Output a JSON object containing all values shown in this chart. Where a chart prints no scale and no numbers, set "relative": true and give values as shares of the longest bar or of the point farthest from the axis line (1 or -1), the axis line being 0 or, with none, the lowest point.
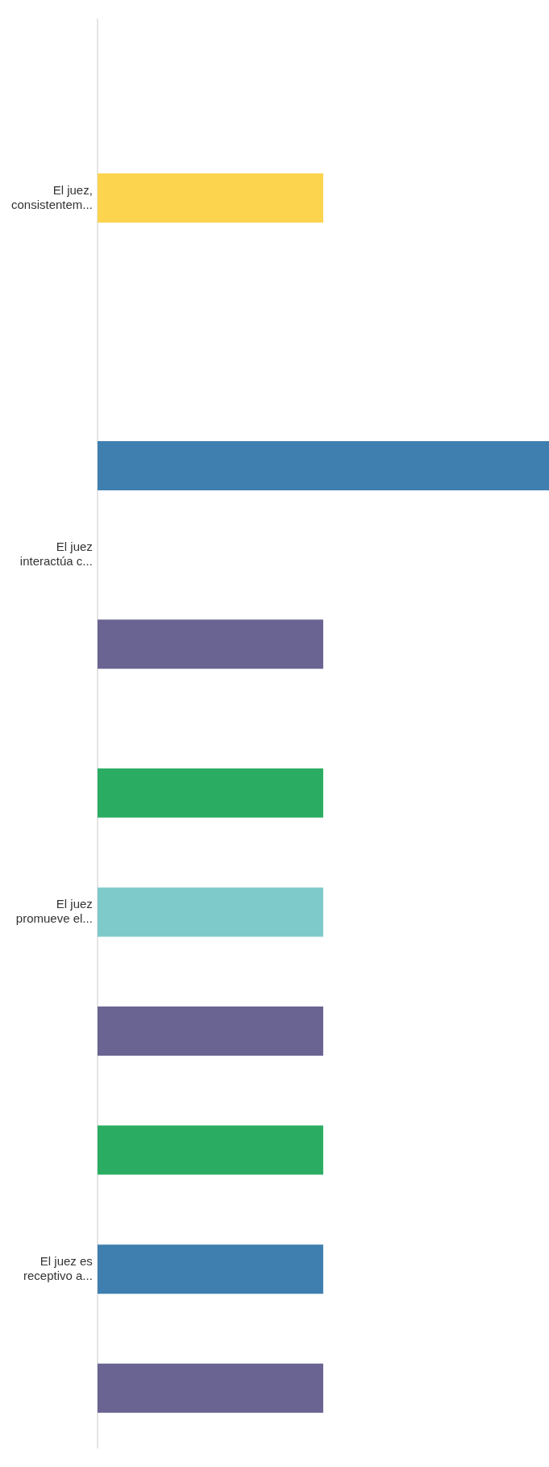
{
  "chart_data": {
    "type": "bar",
    "orientation": "horizontal",
    "relative": true,
    "categories": [
      "El juez, consistentem...",
      "El juez interactúa c...",
      "El juez promueve el...",
      "El juez es receptivo a..."
    ],
    "series": [
      {
        "color": "#fdd44e",
        "values": [
          0.5,
          null,
          null,
          null
        ]
      },
      {
        "color": "#2aad62",
        "values": [
          null,
          null,
          0.5,
          0.5
        ]
      },
      {
        "color": "#3f7fb0",
        "values": [
          null,
          1,
          null,
          0.5
        ]
      },
      {
        "color": "#7ec9c9",
        "values": [
          null,
          null,
          0.5,
          null
        ]
      },
      {
        "color": "#6a6492",
        "values": [
          null,
          0.5,
          0.5,
          0.5
        ]
      }
    ],
    "legend": false
  }
}
